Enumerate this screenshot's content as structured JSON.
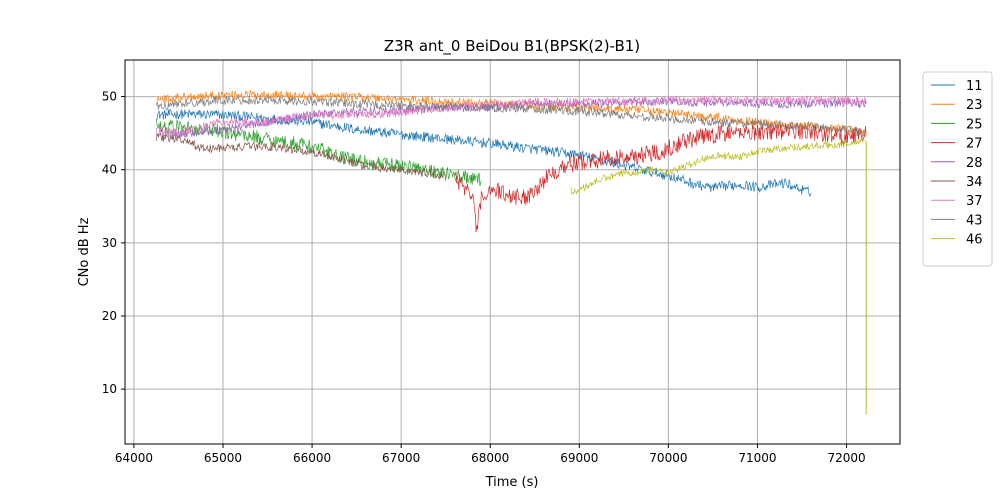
{
  "chart_data": {
    "type": "line",
    "title": "Z3R ant_0 BeiDou B1(BPSK(2)-B1)",
    "xlabel": "Time (s)",
    "ylabel": "CNo dB Hz",
    "xlim": [
      63900,
      72600
    ],
    "ylim": [
      2.5,
      55
    ],
    "xticks": [
      64000,
      65000,
      66000,
      67000,
      68000,
      69000,
      70000,
      71000,
      72000
    ],
    "yticks": [
      10,
      20,
      30,
      40,
      50
    ],
    "xtick_labels": [
      "64000",
      "65000",
      "66000",
      "67000",
      "68000",
      "69000",
      "70000",
      "71000",
      "72000"
    ],
    "ytick_labels": [
      "10",
      "20",
      "30",
      "40",
      "50"
    ],
    "grid": true,
    "legend_position": "outside-right-top",
    "series": [
      {
        "name": "11",
        "color": "#1f77b4",
        "noise": 0.7,
        "x": [
          64250,
          64500,
          65000,
          65500,
          66000,
          66500,
          67000,
          67500,
          68000,
          68500,
          69000,
          69300,
          69700,
          70000,
          70300,
          70500,
          70800,
          71000,
          71300,
          71600
        ],
        "y": [
          47.5,
          47.6,
          47.5,
          47.0,
          46.5,
          45.5,
          44.8,
          44.2,
          43.6,
          42.8,
          42.0,
          41.2,
          40.0,
          39.2,
          38.0,
          37.5,
          38.0,
          37.6,
          38.2,
          36.8
        ]
      },
      {
        "name": "23",
        "color": "#ff7f0e",
        "noise": 0.6,
        "x": [
          64250,
          64600,
          65000,
          65500,
          66000,
          66500,
          67000,
          67500,
          68000,
          68500,
          69000,
          69500,
          70000,
          70500,
          71000,
          71500,
          72000,
          72220
        ],
        "y": [
          49.6,
          50.0,
          50.2,
          50.3,
          50.0,
          50.0,
          49.6,
          49.3,
          49.0,
          48.8,
          48.5,
          48.3,
          47.8,
          47.2,
          46.5,
          46.0,
          45.5,
          45.0
        ]
      },
      {
        "name": "25",
        "color": "#2ca02c",
        "noise": 1.0,
        "x": [
          64250,
          64500,
          65000,
          65500,
          66000,
          66300,
          66600,
          67000,
          67300,
          67600,
          67900
        ],
        "y": [
          46.0,
          45.8,
          45.2,
          44.2,
          43.2,
          41.8,
          41.0,
          40.5,
          40.0,
          39.2,
          38.5
        ]
      },
      {
        "name": "27",
        "color": "#d62728",
        "noise": 1.2,
        "x": [
          67600,
          67800,
          67850,
          67900,
          68000,
          68200,
          68400,
          68600,
          68800,
          69000,
          69300,
          69600,
          69900,
          70200,
          70600,
          71000,
          71500,
          72000,
          72220
        ],
        "y": [
          39.0,
          36.5,
          31.5,
          36.0,
          37.5,
          36.5,
          36.2,
          38.5,
          40.5,
          41.0,
          41.5,
          41.8,
          42.5,
          44.0,
          45.0,
          45.2,
          45.3,
          44.5,
          45.0
        ]
      },
      {
        "name": "28",
        "color": "#9467bd",
        "noise": 0.6,
        "x": [
          64250,
          64500,
          65000,
          65500,
          66000,
          66500,
          67000,
          67500,
          68000,
          68500,
          69000,
          69500,
          70000,
          70500,
          71000,
          71500,
          72000,
          72220
        ],
        "y": [
          45.0,
          44.8,
          45.5,
          46.5,
          47.5,
          48.0,
          48.2,
          48.5,
          48.5,
          49.0,
          49.0,
          49.2,
          49.3,
          49.2,
          49.0,
          49.0,
          49.2,
          49.0
        ]
      },
      {
        "name": "34",
        "color": "#8c564b",
        "noise": 0.6,
        "x": [
          64250,
          64500,
          64800,
          65000,
          65500,
          66000,
          66300,
          66600,
          67000,
          67500
        ],
        "y": [
          44.5,
          44.2,
          42.8,
          43.0,
          43.2,
          42.5,
          41.5,
          40.5,
          40.0,
          39.2
        ]
      },
      {
        "name": "37",
        "color": "#e377c2",
        "noise": 0.6,
        "x": [
          64250,
          64500,
          65000,
          65500,
          66000,
          66500,
          67000,
          67500,
          68000,
          68500,
          69000,
          69500,
          70000,
          70500,
          71000,
          71500,
          72000,
          72220
        ],
        "y": [
          45.5,
          45.0,
          46.5,
          46.5,
          47.5,
          47.5,
          47.8,
          48.5,
          49.0,
          49.2,
          49.3,
          49.3,
          49.5,
          49.5,
          49.5,
          49.5,
          49.5,
          49.3
        ]
      },
      {
        "name": "43",
        "color": "#7f7f7f",
        "noise": 0.6,
        "x": [
          64250,
          64500,
          65000,
          65500,
          66000,
          66500,
          67000,
          67500,
          68000,
          68500,
          69000,
          69500,
          70000,
          70500,
          71000,
          71500,
          72000,
          72220
        ],
        "y": [
          48.5,
          49.0,
          49.5,
          49.5,
          49.3,
          49.0,
          48.8,
          48.6,
          48.5,
          48.3,
          48.0,
          47.5,
          47.0,
          46.5,
          46.2,
          46.0,
          45.5,
          45.0
        ]
      },
      {
        "name": "46",
        "color": "#bcbd22",
        "noise": 0.5,
        "x": [
          68900,
          69000,
          69200,
          69500,
          69800,
          70000,
          70200,
          70500,
          70800,
          71000,
          71300,
          71600,
          72000,
          72200
        ],
        "y": [
          37.0,
          37.2,
          38.5,
          39.5,
          40.0,
          39.5,
          40.5,
          42.0,
          41.8,
          42.5,
          43.0,
          43.2,
          43.5,
          44.0
        ]
      }
    ]
  }
}
